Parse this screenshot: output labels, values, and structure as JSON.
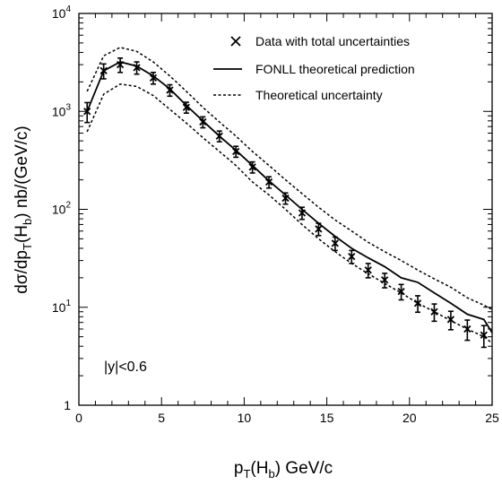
{
  "chart_data": {
    "type": "line",
    "title": "",
    "xlabel": {
      "main": "p",
      "sub": "T",
      "mid": "(H",
      "sub2": "b",
      "end": ") GeV/c"
    },
    "ylabel": {
      "a": "dσ/dp",
      "sub1": "T",
      "b": "(H",
      "sub2": "b",
      "c": ") nb/(GeV/c)"
    },
    "xlim": [
      0,
      25
    ],
    "ylim": [
      1,
      10000
    ],
    "yscale": "log",
    "grid": false,
    "legend_position": "top-right",
    "x_ticks": [
      "0",
      "5",
      "10",
      "15",
      "20",
      "25"
    ],
    "y_ticks": [
      {
        "base": "1",
        "exp": ""
      },
      {
        "base": "10",
        "exp": "1"
      },
      {
        "base": "10",
        "exp": "2"
      },
      {
        "base": "10",
        "exp": "3"
      },
      {
        "base": "10",
        "exp": "4"
      }
    ],
    "annotation": "|y|<0.6",
    "data": {
      "name": "Data with total uncertainties",
      "x": [
        0.5,
        1.5,
        2.5,
        3.5,
        4.5,
        5.5,
        6.5,
        7.5,
        8.5,
        9.5,
        10.5,
        11.5,
        12.5,
        13.5,
        14.5,
        15.5,
        16.5,
        17.5,
        18.5,
        19.5,
        20.5,
        21.5,
        22.5,
        23.5,
        24.5
      ],
      "y": [
        1000,
        2600,
        3000,
        2800,
        2200,
        1650,
        1100,
        780,
        560,
        390,
        270,
        190,
        130,
        92,
        63,
        45,
        33,
        24,
        19,
        14.5,
        11,
        9,
        7.5,
        6,
        5.2
      ],
      "err_up": [
        230,
        450,
        500,
        400,
        300,
        220,
        140,
        100,
        70,
        50,
        35,
        25,
        17,
        13,
        9,
        7,
        5,
        4,
        3.2,
        2.6,
        2.1,
        1.8,
        1.6,
        1.4,
        1.3
      ],
      "err_down": [
        230,
        450,
        500,
        400,
        300,
        220,
        140,
        100,
        70,
        50,
        35,
        25,
        17,
        13,
        9,
        7,
        5,
        4,
        3.2,
        2.6,
        2.1,
        1.8,
        1.6,
        1.4,
        1.3
      ]
    },
    "central": {
      "name": "FONLL theoretical prediction",
      "x": [
        0.5,
        1.5,
        2.5,
        3.5,
        4.5,
        5.5,
        6.5,
        7.5,
        8.5,
        9.5,
        10.5,
        11.5,
        12.5,
        13.5,
        14.5,
        15.5,
        16.5,
        17.5,
        18.5,
        19.5,
        20.5,
        21.5,
        22.5,
        23.5,
        24.5,
        25
      ],
      "y": [
        1000,
        2600,
        3200,
        2900,
        2300,
        1700,
        1150,
        800,
        560,
        400,
        280,
        195,
        140,
        100,
        72,
        53,
        40,
        32,
        26,
        20,
        18,
        14,
        11,
        8.5,
        7.5,
        5.5
      ]
    },
    "upper": {
      "name": "Theoretical uncertainty",
      "x": [
        0.5,
        1.5,
        2.5,
        3.5,
        4.5,
        5.5,
        6.5,
        7.5,
        8.5,
        9.5,
        10.5,
        11.5,
        12.5,
        13.5,
        14.5,
        15.5,
        16.5,
        17.5,
        18.5,
        19.5,
        20.5,
        21.5,
        22.5,
        23.5,
        24.5,
        25
      ],
      "y": [
        1600,
        3700,
        4500,
        4100,
        3200,
        2300,
        1600,
        1100,
        780,
        560,
        390,
        280,
        200,
        145,
        105,
        78,
        60,
        46,
        37,
        30,
        24,
        19.5,
        16,
        12.5,
        10.5,
        9.5
      ]
    },
    "lower": {
      "name": "Theoretical uncertainty",
      "x": [
        0.5,
        1.5,
        2.5,
        3.5,
        4.5,
        5.5,
        6.5,
        7.5,
        8.5,
        9.5,
        10.5,
        11.5,
        12.5,
        13.5,
        14.5,
        15.5,
        16.5,
        17.5,
        18.5,
        19.5,
        20.5,
        21.5,
        22.5,
        23.5,
        24.5,
        25
      ],
      "y": [
        620,
        1500,
        1900,
        1800,
        1450,
        1050,
        760,
        540,
        390,
        280,
        190,
        140,
        100,
        70,
        50,
        37,
        28,
        22,
        17.5,
        14,
        11,
        9,
        7.3,
        6,
        5,
        4.3
      ]
    }
  }
}
